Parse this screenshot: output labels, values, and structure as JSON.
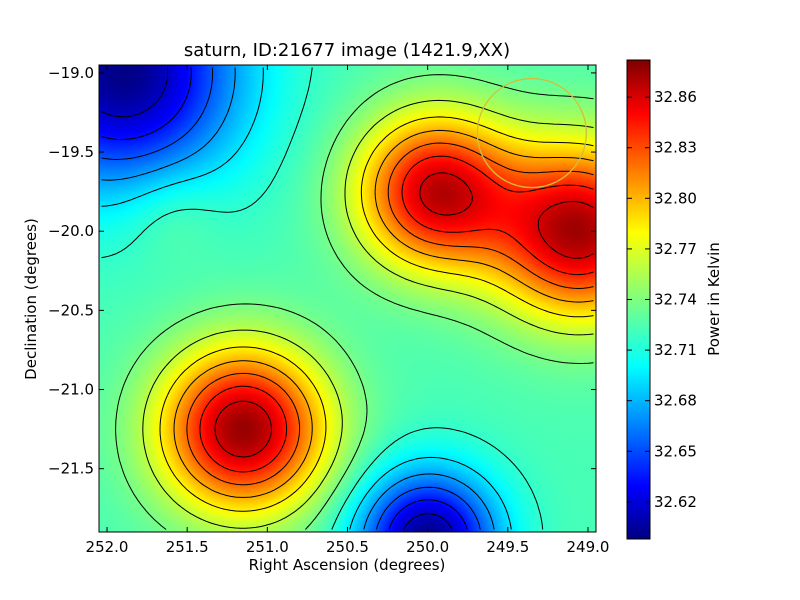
{
  "chart_data": {
    "type": "heatmap",
    "title": "saturn, ID:21677 image (1421.9,XX)",
    "xlabel": "Right Ascension (degrees)",
    "ylabel": "Declination (degrees)",
    "xlim": [
      252.05,
      248.95
    ],
    "ylim": [
      -21.9,
      -18.95
    ],
    "x_ticks": [
      252.0,
      251.5,
      251.0,
      250.5,
      250.0,
      249.5,
      249.0
    ],
    "x_tick_labels": [
      "252.0",
      "251.5",
      "251.0",
      "250.5",
      "250.0",
      "249.5",
      "249.0"
    ],
    "y_ticks": [
      -19.0,
      -19.5,
      -20.0,
      -20.5,
      -21.0,
      -21.5
    ],
    "y_tick_labels": [
      "−19.0",
      "−19.5",
      "−20.0",
      "−20.5",
      "−21.0",
      "−21.5"
    ],
    "colorbar": {
      "label": "Power in Kelvin",
      "range": [
        32.598,
        32.882
      ],
      "ticks": [
        32.62,
        32.65,
        32.68,
        32.71,
        32.74,
        32.77,
        32.8,
        32.83,
        32.86
      ],
      "tick_labels": [
        "32.62",
        "32.65",
        "32.68",
        "32.71",
        "32.74",
        "32.77",
        "32.80",
        "32.83",
        "32.86"
      ],
      "colormap": "jet"
    },
    "features": [
      {
        "x": 251.15,
        "y": -21.25,
        "value": 32.875,
        "kind": "peak"
      },
      {
        "x": 249.95,
        "y": -19.75,
        "value": 32.86,
        "kind": "peak"
      },
      {
        "x": 249.05,
        "y": -20.0,
        "value": 32.87,
        "kind": "peak"
      },
      {
        "x": 251.9,
        "y": -19.0,
        "value": 32.6,
        "kind": "trough"
      },
      {
        "x": 251.6,
        "y": -19.87,
        "value": 32.74,
        "kind": "local-max"
      },
      {
        "x": 250.0,
        "y": -21.95,
        "value": 32.6,
        "kind": "trough"
      }
    ],
    "annotation_circle": {
      "x": 249.35,
      "y": -19.38,
      "radius_deg": 0.34,
      "color": "#d4bd3c"
    },
    "contours": "black",
    "grid": false
  }
}
